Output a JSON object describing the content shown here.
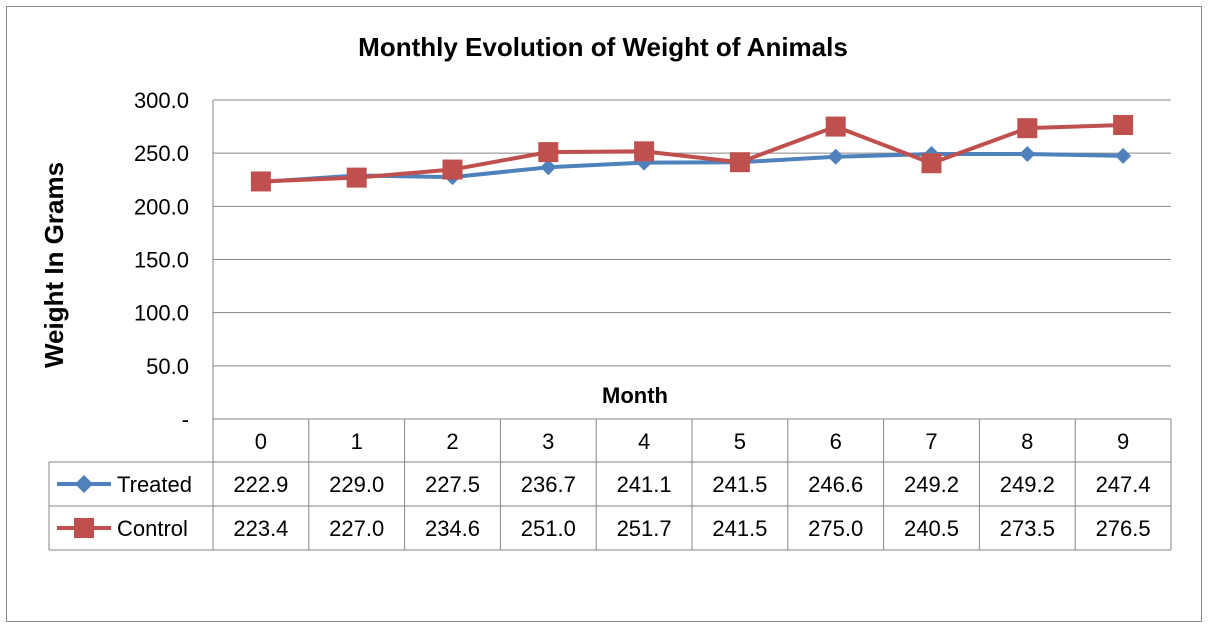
{
  "chart_data": {
    "type": "line",
    "title": "Monthly Evolution  of Weight of Animals",
    "xlabel": "Month",
    "ylabel": "Weight In Grams",
    "categories": [
      "0",
      "1",
      "2",
      "3",
      "4",
      "5",
      "6",
      "7",
      "8",
      "9"
    ],
    "ylim": [
      0,
      300
    ],
    "yticks": [
      0,
      50,
      100,
      150,
      200,
      250,
      300
    ],
    "ytick_labels": [
      "-",
      "50.0",
      "100.0",
      "150.0",
      "200.0",
      "250.0",
      "300.0"
    ],
    "grid": true,
    "legend": "data-table",
    "series": [
      {
        "name": "Treated",
        "color": "#4F81BD",
        "marker": "diamond",
        "values": [
          222.9,
          229.0,
          227.5,
          236.7,
          241.1,
          241.5,
          246.6,
          249.2,
          249.2,
          247.4
        ],
        "labels": [
          "222.9",
          "229.0",
          "227.5",
          "236.7",
          "241.1",
          "241.5",
          "246.6",
          "249.2",
          "249.2",
          "247.4"
        ]
      },
      {
        "name": "Control",
        "color": "#C0504D",
        "marker": "square",
        "values": [
          223.4,
          227.0,
          234.6,
          251.0,
          251.7,
          241.5,
          275.0,
          240.5,
          273.5,
          276.5
        ],
        "labels": [
          "223.4",
          "227.0",
          "234.6",
          "251.0",
          "251.7",
          "241.5",
          "275.0",
          "240.5",
          "273.5",
          "276.5"
        ]
      }
    ]
  }
}
